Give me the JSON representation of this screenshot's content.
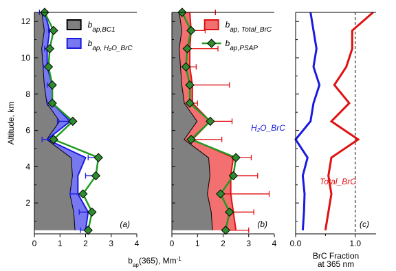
{
  "chart_data": [
    {
      "type": "stacked_area",
      "panel_label": "(a)",
      "ylabel": "Altitude, km",
      "xlabel": {
        "base": "b",
        "sub": "ap",
        "main": "(365), Mm",
        "sup": "-1"
      },
      "y": [
        0.5,
        1.5,
        2.5,
        3.5,
        4.5,
        5.5,
        6.5,
        7.5,
        8.5,
        9.5,
        10.5,
        11.5,
        12.5
      ],
      "xlim": [
        0,
        4
      ],
      "xticks": [
        0,
        1,
        2,
        3,
        4
      ],
      "ylim": [
        0.3,
        12.5
      ],
      "yticks": [
        2,
        4,
        6,
        8,
        10,
        12
      ],
      "yminor": [
        1,
        3,
        5,
        7,
        9,
        11
      ],
      "legend": "top-right",
      "series": [
        {
          "name": "b",
          "subscript": "ap,BC1",
          "color": "#808080",
          "edge": "#000000",
          "values": [
            1.6,
            1.55,
            1.4,
            1.5,
            1.45,
            0.5,
            1.0,
            0.5,
            0.4,
            0.35,
            0.3,
            0.4,
            0.3
          ]
        },
        {
          "name": "b",
          "subscript": "ap, H₂O_BrC",
          "color": "#7878f0",
          "edge": "#1a1ae0",
          "values": [
            0.4,
            0.55,
            0.3,
            0.2,
            0.55,
            0.0,
            0.4,
            0.2,
            0.3,
            0.15,
            0.2,
            0.2,
            0.1
          ]
        }
      ],
      "overlay": {
        "color": "#1f9a1f",
        "marker_color": "#2e8b2e",
        "error_color": "#1a1ae0",
        "error_direction": "minus",
        "values": [
          2.1,
          2.25,
          1.9,
          2.4,
          2.5,
          0.75,
          1.5,
          0.7,
          0.7,
          0.55,
          0.6,
          0.75,
          0.4
        ],
        "errors": [
          0.3,
          0.5,
          0.5,
          0.4,
          0.4,
          0.45,
          0.6,
          0.2,
          0.2,
          0.2,
          0.2,
          0.2,
          0.2
        ]
      }
    },
    {
      "type": "stacked_area",
      "panel_label": "(b)",
      "y": [
        0.5,
        1.5,
        2.5,
        3.5,
        4.5,
        5.5,
        6.5,
        7.5,
        8.5,
        9.5,
        10.5,
        11.5,
        12.5
      ],
      "xlim": [
        0,
        4
      ],
      "xticks": [
        0,
        1,
        2,
        3,
        4
      ],
      "ylim": [
        0.3,
        12.5
      ],
      "yticks": [
        2,
        4,
        6,
        8,
        10,
        12
      ],
      "yminor": [
        1,
        3,
        5,
        7,
        9,
        11
      ],
      "legend": "top-right",
      "series": [
        {
          "color": "#808080",
          "edge": "#000000",
          "values": [
            1.6,
            1.55,
            1.4,
            1.5,
            1.45,
            0.5,
            1.0,
            0.5,
            0.4,
            0.35,
            0.3,
            0.4,
            0.3
          ]
        },
        {
          "name": "b",
          "subscript": "ap, Total_BrC",
          "color": "#f27070",
          "edge": "#e01010",
          "values": [
            0.9,
            0.85,
            0.9,
            0.8,
            0.95,
            0.3,
            0.5,
            0.3,
            0.4,
            0.35,
            0.4,
            0.35,
            0.4
          ]
        }
      ],
      "overlay": {
        "name": "b",
        "subscript": "ap,PSAP",
        "color": "#1f9a1f",
        "marker_color": "#2e8b2e",
        "error_color": "#e01010",
        "error_direction": "plus",
        "values": [
          2.1,
          2.25,
          1.9,
          2.4,
          2.5,
          0.75,
          1.5,
          0.7,
          0.7,
          0.55,
          0.6,
          0.75,
          0.4
        ],
        "errors": [
          0.9,
          0.95,
          1.9,
          0.95,
          0.6,
          1.2,
          0.85,
          0.3,
          1.55,
          0.4,
          1.2,
          0.55,
          1.3
        ]
      }
    },
    {
      "type": "line",
      "panel_label": "(c)",
      "xlabel": [
        "BrC Fraction",
        "at 365 nm"
      ],
      "y": [
        0.5,
        1.5,
        2.5,
        3.5,
        4.5,
        5.5,
        6.5,
        7.5,
        8.5,
        9.5,
        10.5,
        11.5,
        12.5
      ],
      "xlim": [
        0,
        1.35
      ],
      "xticks": [
        {
          "value": 0,
          "label": "0.0"
        },
        {
          "value": 1,
          "label": "1.0"
        }
      ],
      "xminor": [
        0.5
      ],
      "ylim": [
        0.3,
        12.5
      ],
      "yticks": [
        2,
        4,
        6,
        8,
        10,
        12
      ],
      "yminor": [
        1,
        3,
        5,
        7,
        9,
        11
      ],
      "reference_line": 1,
      "series": [
        {
          "name": "H₂O_BrC",
          "color": "#1a1ae0",
          "values": [
            0.12,
            0.14,
            0.15,
            0.12,
            0.2,
            0.0,
            0.25,
            0.3,
            0.4,
            0.3,
            0.35,
            0.3,
            0.25
          ]
        },
        {
          "name": "Total_BrC",
          "color": "#e01010",
          "values": [
            0.5,
            0.55,
            0.6,
            0.55,
            0.6,
            1.05,
            0.6,
            0.9,
            0.65,
            0.85,
            0.95,
            0.95,
            1.3
          ]
        }
      ]
    }
  ]
}
